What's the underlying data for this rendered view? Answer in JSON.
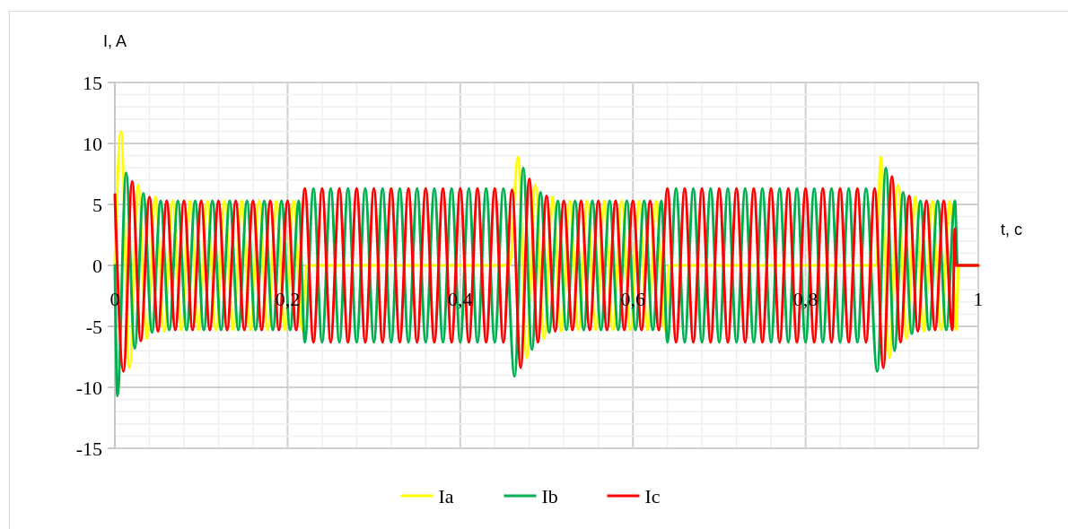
{
  "chart_data": {
    "type": "line",
    "xlabel": "t, c",
    "ylabel": "I, A",
    "xlim": [
      0,
      1
    ],
    "ylim": [
      -15,
      15
    ],
    "xticks": [
      0,
      {
        "value": 0.04,
        "label": null
      },
      {
        "value": 0.08,
        "label": null
      },
      {
        "value": 0.12,
        "label": null
      },
      {
        "value": 0.16,
        "label": null
      },
      {
        "value": 0.2,
        "label": "0,2"
      },
      {
        "value": 0.24,
        "label": null
      },
      {
        "value": 0.28,
        "label": null
      },
      {
        "value": 0.32,
        "label": null
      },
      {
        "value": 0.36,
        "label": null
      },
      {
        "value": 0.4,
        "label": "0,4"
      },
      {
        "value": 0.44,
        "label": null
      },
      {
        "value": 0.48,
        "label": null
      },
      {
        "value": 0.52,
        "label": null
      },
      {
        "value": 0.56,
        "label": null
      },
      {
        "value": 0.6,
        "label": "0,6"
      },
      {
        "value": 0.64,
        "label": null
      },
      {
        "value": 0.68,
        "label": null
      },
      {
        "value": 0.72,
        "label": null
      },
      {
        "value": 0.76,
        "label": null
      },
      {
        "value": 0.8,
        "label": "0,8"
      },
      {
        "value": 0.84,
        "label": null
      },
      {
        "value": 0.88,
        "label": null
      },
      {
        "value": 0.92,
        "label": null
      },
      {
        "value": 0.96,
        "label": null
      },
      1
    ],
    "yticks": [
      -15,
      {
        "value": -14,
        "label": null
      },
      {
        "value": -13,
        "label": null
      },
      {
        "value": -12,
        "label": null
      },
      {
        "value": -11,
        "label": null
      },
      -10,
      {
        "value": -9,
        "label": null
      },
      {
        "value": -8,
        "label": null
      },
      {
        "value": -7,
        "label": null
      },
      {
        "value": -6,
        "label": null
      },
      -5,
      {
        "value": -4,
        "label": null
      },
      {
        "value": -3,
        "label": null
      },
      {
        "value": -2,
        "label": null
      },
      {
        "value": -1,
        "label": null
      },
      0,
      {
        "value": 1,
        "label": null
      },
      {
        "value": 2,
        "label": null
      },
      {
        "value": 3,
        "label": null
      },
      {
        "value": 4,
        "label": null
      },
      5,
      {
        "value": 6,
        "label": null
      },
      {
        "value": 7,
        "label": null
      },
      {
        "value": 8,
        "label": null
      },
      {
        "value": 9,
        "label": null
      },
      10,
      {
        "value": 11,
        "label": null
      },
      {
        "value": 12,
        "label": null
      },
      {
        "value": 13,
        "label": null
      },
      {
        "value": 14,
        "label": null
      },
      15
    ],
    "grid": true,
    "legend": "bottom",
    "line_style": "solid",
    "series": [
      {
        "name": "Ia",
        "color": "#ffff00",
        "x": [
          0,
          0.007,
          0.017,
          0.027,
          0.037,
          0.047,
          0.057,
          0.067,
          0.077,
          0.087,
          0.097,
          0.107,
          0.117,
          0.127,
          0.137,
          0.147,
          0.157,
          0.167,
          0.177,
          0.187,
          0.197,
          0.207,
          0.217,
          0.222,
          0.457,
          0.467,
          0.477,
          0.487,
          0.497,
          0.507,
          0.517,
          0.527,
          0.537,
          0.547,
          0.557,
          0.567,
          0.577,
          0.587,
          0.597,
          0.607,
          0.617,
          0.627,
          0.637,
          0.642,
          0.882,
          0.887,
          0.897,
          0.907,
          0.917,
          0.927,
          0.937,
          0.947,
          0.957,
          0.967,
          0.975,
          0.977,
          1
        ],
        "values": [
          0,
          11,
          -8.4,
          6.6,
          -6,
          5.6,
          -5.4,
          5.3,
          -5.3,
          5.3,
          -5.3,
          5.3,
          -5.3,
          5.3,
          -5.3,
          5.3,
          -5.3,
          5.3,
          -5.3,
          5.3,
          -5.3,
          5.3,
          -5.3,
          0,
          0,
          8.9,
          -7.6,
          6.6,
          -6,
          5.6,
          -5.4,
          5.3,
          -5.3,
          5.3,
          -5.3,
          5.3,
          -5.3,
          5.3,
          -5.3,
          5.3,
          -5.3,
          5.3,
          -5.3,
          0,
          0,
          8.9,
          -7.6,
          6.6,
          -6,
          5.6,
          -5.4,
          5.3,
          -5.3,
          5.3,
          -5.3,
          0,
          0
        ]
      },
      {
        "name": "Ib",
        "color": "#00b050",
        "x": [
          0,
          0.003,
          0.013,
          0.023,
          0.033,
          0.043,
          0.053,
          0.063,
          0.073,
          0.083,
          0.093,
          0.103,
          0.113,
          0.123,
          0.133,
          0.143,
          0.153,
          0.163,
          0.173,
          0.183,
          0.193,
          0.203,
          0.213,
          0.22,
          0.23,
          0.24,
          0.25,
          0.26,
          0.27,
          0.28,
          0.29,
          0.3,
          0.31,
          0.32,
          0.33,
          0.34,
          0.35,
          0.36,
          0.37,
          0.38,
          0.39,
          0.4,
          0.41,
          0.42,
          0.43,
          0.44,
          0.45,
          0.463,
          0.473,
          0.483,
          0.493,
          0.503,
          0.513,
          0.523,
          0.533,
          0.543,
          0.553,
          0.563,
          0.573,
          0.583,
          0.593,
          0.603,
          0.613,
          0.623,
          0.633,
          0.64,
          0.65,
          0.66,
          0.67,
          0.68,
          0.69,
          0.7,
          0.71,
          0.72,
          0.73,
          0.74,
          0.75,
          0.76,
          0.77,
          0.78,
          0.79,
          0.8,
          0.81,
          0.82,
          0.83,
          0.84,
          0.85,
          0.86,
          0.87,
          0.883,
          0.893,
          0.903,
          0.913,
          0.923,
          0.933,
          0.943,
          0.953,
          0.963,
          0.973,
          0.976,
          1
        ],
        "values": [
          0,
          -10.7,
          7.6,
          -6.8,
          5.9,
          -5.5,
          5.3,
          -5.3,
          5.3,
          -5.3,
          5.3,
          -5.3,
          5.3,
          -5.3,
          5.3,
          -5.3,
          5.3,
          -5.3,
          5.3,
          -5.3,
          5.3,
          -5.3,
          5.3,
          -6.3,
          6.3,
          -6.3,
          6.3,
          -6.3,
          6.3,
          -6.3,
          6.3,
          -6.3,
          6.3,
          -6.3,
          6.3,
          -6.3,
          6.3,
          -6.3,
          6.3,
          -6.3,
          6.3,
          -6.3,
          6.3,
          -6.3,
          6.3,
          -6.3,
          6.3,
          -9.1,
          8,
          -6.9,
          6,
          -5.5,
          5.3,
          -5.3,
          5.3,
          -5.3,
          5.3,
          -5.3,
          5.3,
          -5.3,
          5.3,
          -5.3,
          5.3,
          -5.3,
          5.3,
          -6.3,
          6.3,
          -6.3,
          6.3,
          -6.3,
          6.3,
          -6.3,
          6.3,
          -6.3,
          6.3,
          -6.3,
          6.3,
          -6.3,
          6.3,
          -6.3,
          6.3,
          -6.3,
          6.3,
          -6.3,
          6.3,
          -6.3,
          6.3,
          -6.3,
          6.3,
          -8.7,
          8,
          -7,
          6,
          -5.6,
          5.3,
          -5.3,
          5.3,
          -5.3,
          5.3,
          0,
          0
        ]
      },
      {
        "name": "Ic",
        "color": "#ff0000",
        "x": [
          0,
          0.01,
          0.02,
          0.03,
          0.04,
          0.05,
          0.06,
          0.07,
          0.08,
          0.09,
          0.1,
          0.11,
          0.12,
          0.13,
          0.14,
          0.15,
          0.16,
          0.17,
          0.18,
          0.19,
          0.2,
          0.21,
          0.22,
          0.23,
          0.24,
          0.25,
          0.26,
          0.27,
          0.28,
          0.29,
          0.3,
          0.31,
          0.32,
          0.33,
          0.34,
          0.35,
          0.36,
          0.37,
          0.38,
          0.39,
          0.4,
          0.41,
          0.42,
          0.43,
          0.44,
          0.45,
          0.46,
          0.47,
          0.48,
          0.49,
          0.5,
          0.51,
          0.52,
          0.53,
          0.54,
          0.55,
          0.56,
          0.57,
          0.58,
          0.59,
          0.6,
          0.61,
          0.62,
          0.63,
          0.64,
          0.65,
          0.66,
          0.67,
          0.68,
          0.69,
          0.7,
          0.71,
          0.72,
          0.73,
          0.74,
          0.75,
          0.76,
          0.77,
          0.78,
          0.79,
          0.8,
          0.81,
          0.82,
          0.83,
          0.84,
          0.85,
          0.86,
          0.87,
          0.88,
          0.89,
          0.9,
          0.91,
          0.92,
          0.93,
          0.94,
          0.95,
          0.96,
          0.97,
          0.973,
          0.974,
          1
        ],
        "values": [
          5.8,
          -8.7,
          6.9,
          -6.2,
          5.6,
          -5.4,
          5.3,
          -5.3,
          5.3,
          -5.3,
          5.3,
          -5.3,
          5.3,
          -5.3,
          5.3,
          -5.3,
          5.3,
          -5.3,
          5.3,
          -5.3,
          5.3,
          -5.3,
          6.3,
          -6.3,
          6.3,
          -6.3,
          6.3,
          -6.3,
          6.3,
          -6.3,
          6.3,
          -6.3,
          6.3,
          -6.3,
          6.3,
          -6.3,
          6.3,
          -6.3,
          6.3,
          -6.3,
          6.3,
          -6.3,
          6.3,
          -6.3,
          6.3,
          -6.3,
          6.2,
          -8.4,
          7.1,
          -6.3,
          5.7,
          -5.4,
          5.3,
          -5.3,
          5.3,
          -5.3,
          5.3,
          -5.3,
          5.3,
          -5.3,
          5.3,
          -5.3,
          5.3,
          -5.3,
          6.3,
          -6.3,
          6.3,
          -6.3,
          6.3,
          -6.3,
          6.3,
          -6.3,
          6.3,
          -6.3,
          6.3,
          -6.3,
          6.3,
          -6.3,
          6.3,
          -6.3,
          6.3,
          -6.3,
          6.3,
          -6.3,
          6.3,
          -6.3,
          6.3,
          -6.3,
          6.3,
          -8.4,
          7.3,
          -6.3,
          5.7,
          -5.4,
          5.3,
          -5.3,
          5.3,
          -5.3,
          3,
          0,
          0
        ]
      }
    ]
  }
}
